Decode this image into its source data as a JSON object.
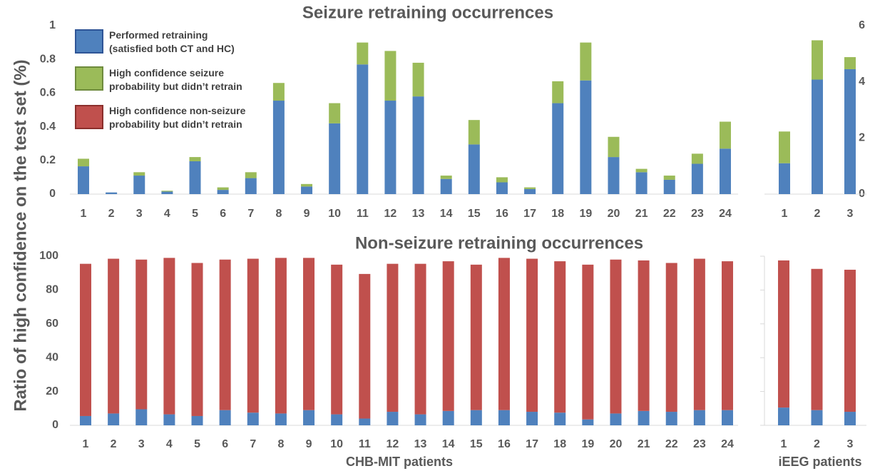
{
  "chart_data": [
    {
      "type": "bar",
      "stacked": true,
      "title": "Seizure retraining occurrences",
      "ylabel": "Ratio of high confidence on the test set (%)",
      "categories": [
        "1",
        "2",
        "3",
        "4",
        "5",
        "6",
        "7",
        "8",
        "9",
        "10",
        "11",
        "12",
        "13",
        "14",
        "15",
        "16",
        "17",
        "18",
        "19",
        "20",
        "21",
        "22",
        "23",
        "24"
      ],
      "series": [
        {
          "name": "Performed retraining (satisfied both CT and HC)",
          "color": "#4f81bd",
          "values": [
            0.165,
            0.01,
            0.11,
            0.015,
            0.195,
            0.025,
            0.095,
            0.555,
            0.045,
            0.42,
            0.77,
            0.555,
            0.58,
            0.09,
            0.295,
            0.07,
            0.03,
            0.54,
            0.675,
            0.22,
            0.13,
            0.085,
            0.18,
            0.27
          ]
        },
        {
          "name": "High confidence seizure probability but didn’t retrain",
          "color": "#9bbb59",
          "values": [
            0.045,
            0,
            0.02,
            0.005,
            0.025,
            0.015,
            0.035,
            0.105,
            0.015,
            0.12,
            0.13,
            0.295,
            0.2,
            0.02,
            0.145,
            0.03,
            0.01,
            0.13,
            0.225,
            0.12,
            0.02,
            0.025,
            0.06,
            0.16
          ]
        }
      ],
      "ylim": [
        0,
        1
      ],
      "yticks": [
        0,
        0.2,
        0.4,
        0.6,
        0.8,
        1
      ]
    },
    {
      "type": "bar",
      "stacked": true,
      "categories": [
        "1",
        "2",
        "3"
      ],
      "series": [
        {
          "color": "#4f81bd",
          "values": [
            1.1,
            4.08,
            4.45
          ]
        },
        {
          "color": "#9bbb59",
          "values": [
            1.13,
            1.4,
            0.43
          ]
        }
      ],
      "ylim": [
        0,
        6
      ],
      "yticks": [
        0,
        2,
        4,
        6
      ],
      "yaxis_side": "right"
    },
    {
      "type": "bar",
      "stacked": true,
      "title": "Non-seizure retraining occurrences",
      "xlabel": "CHB-MIT patients",
      "categories": [
        "1",
        "2",
        "3",
        "4",
        "5",
        "6",
        "7",
        "8",
        "9",
        "10",
        "11",
        "12",
        "13",
        "14",
        "15",
        "16",
        "17",
        "18",
        "19",
        "20",
        "21",
        "22",
        "23",
        "24"
      ],
      "series": [
        {
          "color": "#4f81bd",
          "values": [
            5.5,
            7,
            9.5,
            6.5,
            5.5,
            9,
            7.5,
            7,
            9,
            6.5,
            4,
            8,
            6.5,
            8.5,
            9,
            9,
            8,
            7.5,
            3.5,
            7,
            8.5,
            8,
            9,
            9
          ]
        },
        {
          "name": "High confidence non-seizure probability but didn’t retrain",
          "color": "#c0504d",
          "values": [
            90,
            91.5,
            88.5,
            92.5,
            90.5,
            89,
            91,
            92,
            90,
            88.5,
            85.5,
            87.5,
            89,
            88.5,
            86,
            90,
            90.5,
            89.5,
            91.5,
            91,
            89,
            88,
            89.5,
            88
          ]
        }
      ],
      "ylim": [
        0,
        100
      ],
      "yticks": [
        0,
        20,
        40,
        60,
        80,
        100
      ]
    },
    {
      "type": "bar",
      "stacked": true,
      "xlabel": "iEEG patients",
      "categories": [
        "1",
        "2",
        "3"
      ],
      "series": [
        {
          "color": "#4f81bd",
          "values": [
            10.5,
            9,
            8
          ]
        },
        {
          "color": "#c0504d",
          "values": [
            87,
            83.5,
            84
          ]
        }
      ],
      "ylim": [
        0,
        100
      ],
      "yticks": [
        0,
        20,
        40,
        60,
        80,
        100
      ],
      "ytick_labels": false
    }
  ]
}
